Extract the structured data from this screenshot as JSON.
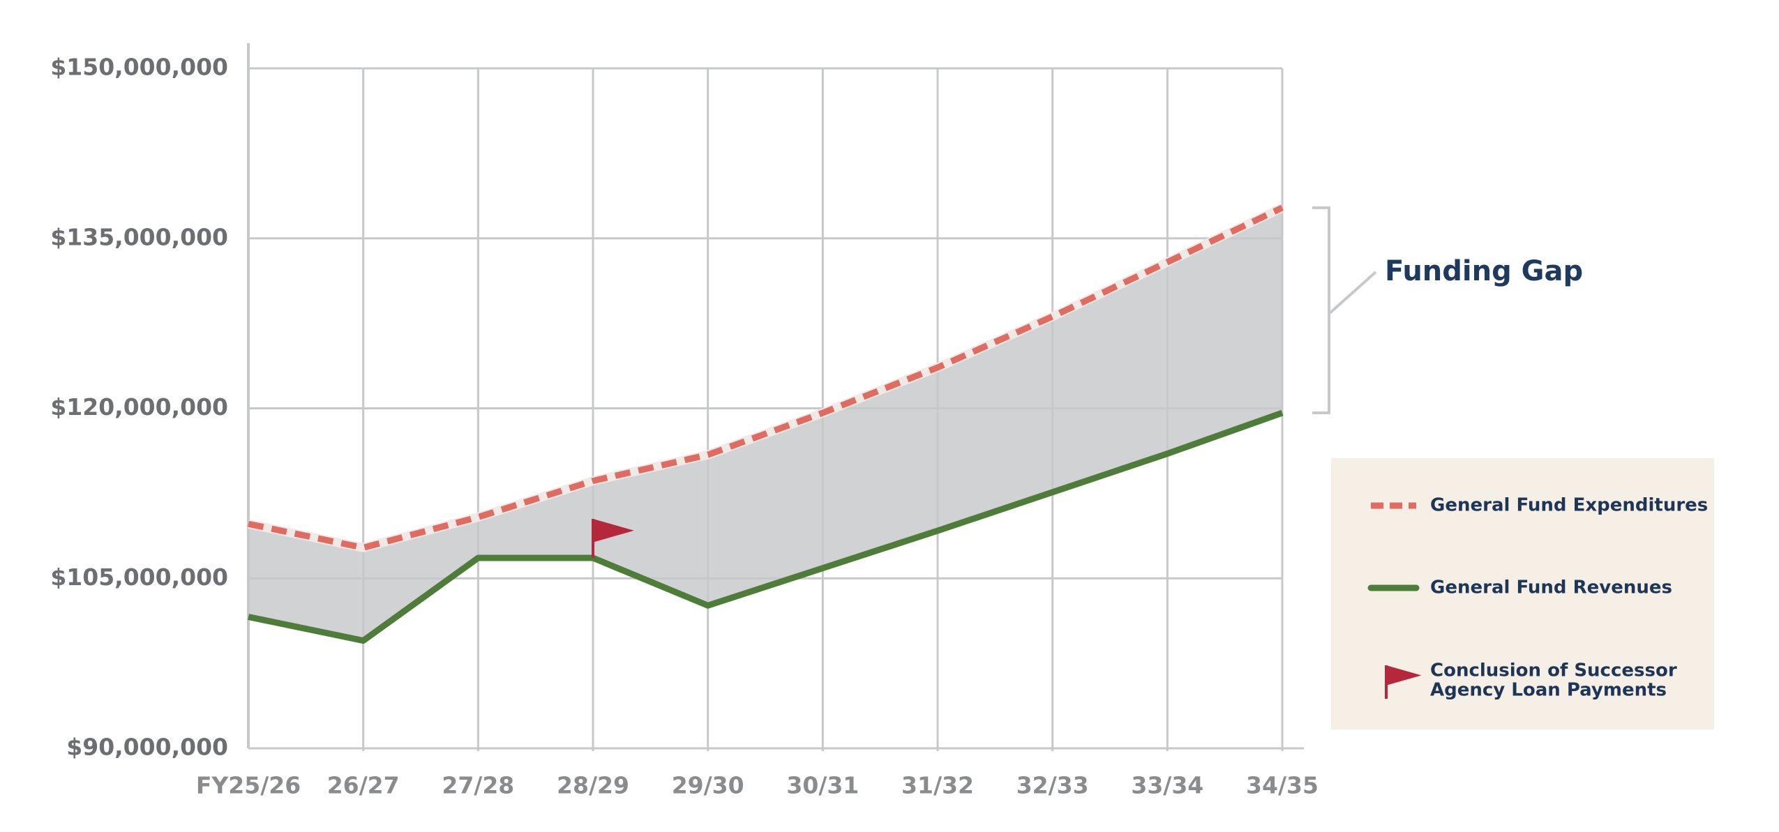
{
  "chart_data": {
    "type": "line",
    "categories": [
      "FY25/26",
      "26/27",
      "27/28",
      "28/29",
      "29/30",
      "30/31",
      "31/32",
      "32/33",
      "33/34",
      "34/35"
    ],
    "series": [
      {
        "name": "General Fund Expenditures",
        "color": "#e06b60",
        "style": "dashed",
        "values": [
          109800000,
          107700000,
          110400000,
          113600000,
          115900000,
          119600000,
          123600000,
          128100000,
          132900000,
          137700000
        ]
      },
      {
        "name": "General Fund Revenues",
        "color": "#4e7d3a",
        "style": "solid",
        "values": [
          101600000,
          99500000,
          106800000,
          106800000,
          102600000,
          105900000,
          109200000,
          112600000,
          116000000,
          119600000
        ]
      }
    ],
    "ylim": [
      90000000,
      150000000
    ],
    "yticks": [
      {
        "value": 90000000,
        "label": "$90,000,000"
      },
      {
        "value": 105000000,
        "label": "$105,000,000"
      },
      {
        "value": 120000000,
        "label": "$120,000,000"
      },
      {
        "value": 135000000,
        "label": "$135,000,000"
      },
      {
        "value": 150000000,
        "label": "$150,000,000"
      }
    ],
    "grid": true,
    "gap_fill_color": "#d1d2d4",
    "gap_label": "Funding Gap",
    "flag_category": "28/29",
    "flag_color": "#b5283b",
    "flag_legend": [
      "Conclusion of Successor",
      "Agency Loan Payments"
    ]
  }
}
